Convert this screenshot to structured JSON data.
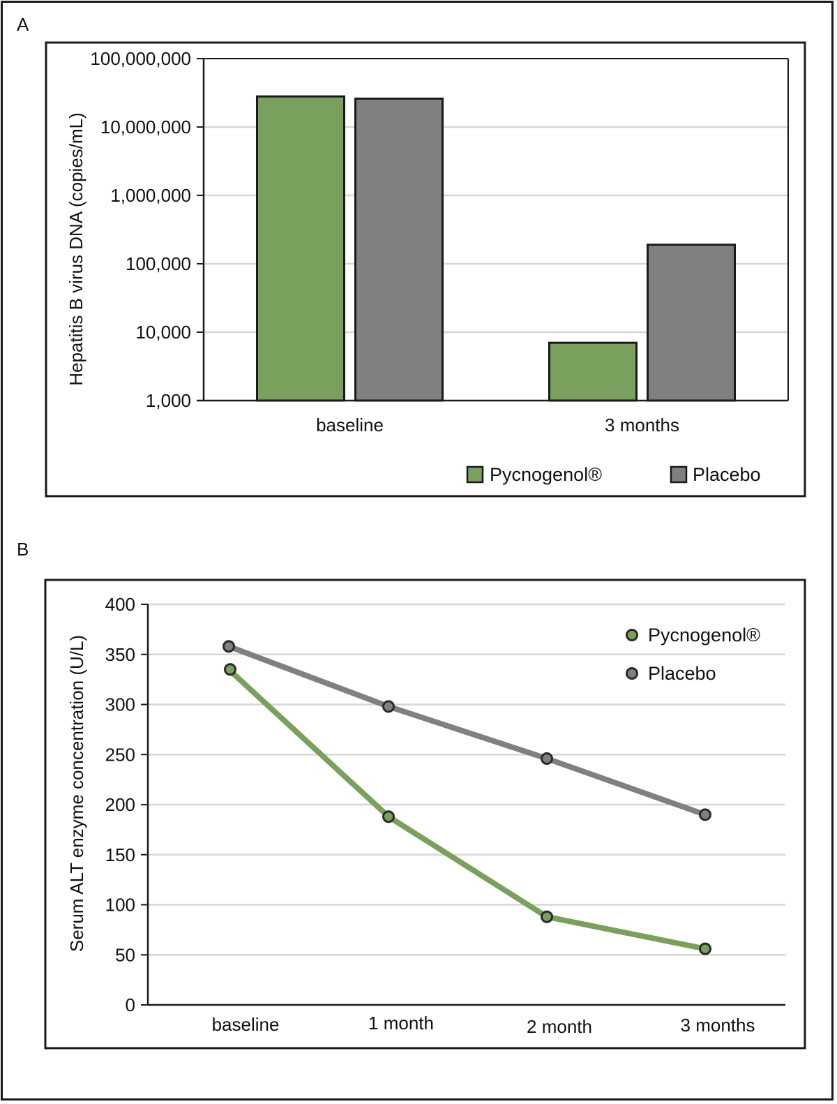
{
  "figure": {
    "panel_a_label": "A",
    "panel_b_label": "B"
  },
  "colors": {
    "pycnogenol": "#7aa05e",
    "placebo": "#808080",
    "grid": "#d6d6d6",
    "axis": "#1a1a1a"
  },
  "chart_data": [
    {
      "panel": "A",
      "type": "bar",
      "title": "",
      "xlabel": "",
      "ylabel": "Hepatitis B virus DNA (copies/mL)",
      "yscale": "log",
      "ylim": [
        1000,
        100000000
      ],
      "yticks": [
        1000,
        10000,
        100000,
        1000000,
        10000000,
        100000000
      ],
      "ytick_labels": [
        "1,000",
        "10,000",
        "100,000",
        "1,000,000",
        "10,000,000",
        "100,000,000"
      ],
      "categories": [
        "baseline",
        "3 months"
      ],
      "series": [
        {
          "name": "Pycnogenol®",
          "color": "#7aa05e",
          "values": [
            28000000,
            7000
          ]
        },
        {
          "name": "Placebo",
          "color": "#808080",
          "values": [
            26000000,
            190000
          ]
        }
      ],
      "legend": {
        "position": "bottom-right",
        "entries": [
          "Pycnogenol®",
          "Placebo"
        ]
      },
      "grid": true
    },
    {
      "panel": "B",
      "type": "line",
      "title": "",
      "xlabel": "",
      "ylabel": "Serum ALT enzyme concentration (U/L)",
      "ylim": [
        0,
        400
      ],
      "yticks": [
        0,
        50,
        100,
        150,
        200,
        250,
        300,
        350,
        400
      ],
      "ytick_labels": [
        "0",
        "50",
        "100",
        "150",
        "200",
        "250",
        "300",
        "350",
        "400"
      ],
      "categories": [
        "baseline",
        "1 month",
        "2 month",
        "3 months"
      ],
      "series": [
        {
          "name": "Pycnogenol®",
          "color": "#7aa05e",
          "values": [
            335,
            188,
            88,
            56
          ]
        },
        {
          "name": "Placebo",
          "color": "#808080",
          "values": [
            358,
            298,
            246,
            190
          ]
        }
      ],
      "legend": {
        "position": "top-right",
        "entries": [
          "Pycnogenol®",
          "Placebo"
        ]
      },
      "grid": true
    }
  ]
}
